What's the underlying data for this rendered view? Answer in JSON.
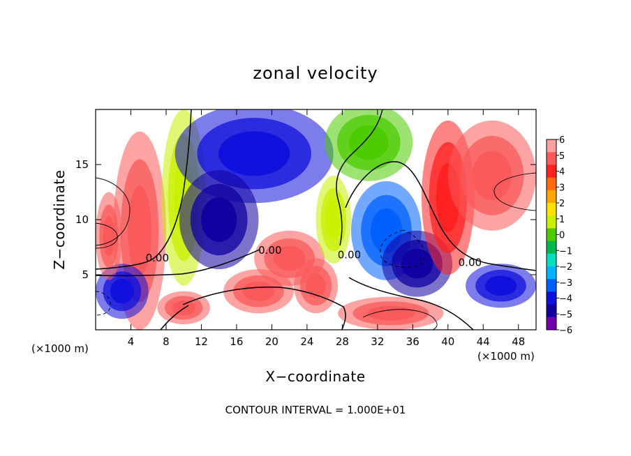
{
  "chart_data": {
    "type": "heatmap",
    "title": "zonal velocity",
    "xlabel": "X−coordinate",
    "ylabel": "Z−coordinate",
    "x_unit_label": "(×1000 m)",
    "x_unit_label_right": "(×1000 m)",
    "xlim": [
      0,
      50
    ],
    "ylim": [
      0,
      20
    ],
    "x_ticks": [
      4,
      8,
      12,
      16,
      20,
      24,
      28,
      32,
      36,
      40,
      44,
      48
    ],
    "y_ticks": [
      5,
      10,
      15
    ],
    "footer": "CONTOUR INTERVAL = 1.000E+01",
    "colorbar": {
      "ticks": [
        "6",
        "5",
        "4",
        "3",
        "2",
        "1",
        "0",
        "−1",
        "−2",
        "−3",
        "−4",
        "−5",
        "−6"
      ],
      "range": [
        -6,
        6
      ],
      "colors": [
        "#fca0a0",
        "#fa5a5a",
        "#ff2020",
        "#ff6a10",
        "#ffa500",
        "#ffe000",
        "#c8f000",
        "#4ccc00",
        "#00b850",
        "#00e0c0",
        "#00b4ff",
        "#0060ff",
        "#1010dc",
        "#1000a0",
        "#7000b0"
      ]
    },
    "contour_labels": [
      {
        "text": "0.00",
        "x": 7.0,
        "y": 6.2
      },
      {
        "text": "0.00",
        "x": 19.8,
        "y": 6.9
      },
      {
        "text": "0.00",
        "x": 28.8,
        "y": 6.5
      },
      {
        "text": "0.00",
        "x": 42.5,
        "y": 5.8
      }
    ],
    "blobs": [
      {
        "x": 5,
        "y": 9,
        "rx": 3,
        "ry": 9,
        "v": 5
      },
      {
        "x": 10,
        "y": 12,
        "rx": 2.5,
        "ry": 8,
        "v": 1
      },
      {
        "x": 18,
        "y": 16,
        "rx": 9,
        "ry": 4.5,
        "v": -4
      },
      {
        "x": 14,
        "y": 10,
        "rx": 4.5,
        "ry": 4.5,
        "v": -5
      },
      {
        "x": 22,
        "y": 6.5,
        "rx": 4,
        "ry": 2.5,
        "v": 5
      },
      {
        "x": 18.5,
        "y": 3.5,
        "rx": 4,
        "ry": 2,
        "v": 5
      },
      {
        "x": 25,
        "y": 4,
        "rx": 2.5,
        "ry": 2.5,
        "v": 5
      },
      {
        "x": 27,
        "y": 10,
        "rx": 2,
        "ry": 4,
        "v": 1
      },
      {
        "x": 33,
        "y": 9,
        "rx": 4,
        "ry": 4.5,
        "v": -3
      },
      {
        "x": 36.5,
        "y": 6,
        "rx": 4,
        "ry": 3,
        "v": -5
      },
      {
        "x": 40,
        "y": 12,
        "rx": 3,
        "ry": 7,
        "v": 4
      },
      {
        "x": 45,
        "y": 14,
        "rx": 5,
        "ry": 5,
        "v": 5
      },
      {
        "x": 46,
        "y": 4,
        "rx": 4,
        "ry": 2,
        "v": -4
      },
      {
        "x": 3,
        "y": 3.5,
        "rx": 3,
        "ry": 2.5,
        "v": -4
      },
      {
        "x": 1.5,
        "y": 8.5,
        "rx": 1.5,
        "ry": 4,
        "v": 5
      },
      {
        "x": 33.5,
        "y": 1.5,
        "rx": 6,
        "ry": 1.5,
        "v": 5
      },
      {
        "x": 10,
        "y": 2,
        "rx": 3,
        "ry": 1.5,
        "v": 5
      },
      {
        "x": 31,
        "y": 17,
        "rx": 5,
        "ry": 3.5,
        "v": 0
      }
    ]
  }
}
